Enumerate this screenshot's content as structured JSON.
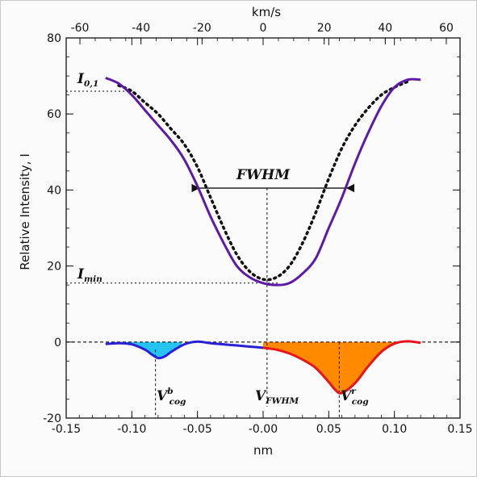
{
  "chart_data": {
    "type": "line",
    "xlabel": "nm",
    "ylabel": "Relative Intensity, I",
    "x2label": "km/s",
    "xlim": [
      -0.15,
      0.15
    ],
    "ylim": [
      -20,
      80
    ],
    "x2lim": [
      -64.5,
      64.5
    ],
    "xticks": [
      "-0.15",
      "-0.10",
      "-0.05",
      "-0.00",
      "0.05",
      "0.10",
      "0.15"
    ],
    "x2ticks": [
      "-60",
      "-40",
      "-20",
      "0",
      "20",
      "40",
      "60"
    ],
    "yticks": [
      "-20",
      "0",
      "20",
      "40",
      "60",
      "80"
    ],
    "series": [
      {
        "role": "observed-profile",
        "color": "#5b1aa8",
        "x": [
          -0.12,
          -0.11,
          -0.1,
          -0.09,
          -0.08,
          -0.07,
          -0.06,
          -0.05,
          -0.04,
          -0.03,
          -0.02,
          -0.01,
          0.0,
          0.01,
          0.02,
          0.03,
          0.04,
          0.05,
          0.06,
          0.07,
          0.08,
          0.09,
          0.1,
          0.11,
          0.12
        ],
        "y": [
          69.5,
          68,
          65,
          61,
          57,
          53,
          48,
          41,
          33,
          26,
          20,
          17,
          15.5,
          15,
          15.5,
          18,
          22,
          30,
          38,
          47,
          55,
          62,
          67,
          69,
          69
        ]
      },
      {
        "role": "mirrored-profile",
        "color": "#111111",
        "style": "dotted",
        "x": [
          -0.11,
          -0.1,
          -0.09,
          -0.08,
          -0.07,
          -0.06,
          -0.05,
          -0.04,
          -0.03,
          -0.02,
          -0.01,
          0.0,
          0.01,
          0.02,
          0.03,
          0.04,
          0.05,
          0.06,
          0.07,
          0.08,
          0.09,
          0.1,
          0.11
        ],
        "y": [
          67.5,
          66,
          63,
          60,
          56,
          52,
          46,
          38,
          30,
          23,
          18.5,
          16.5,
          17,
          20,
          26,
          34,
          43,
          51,
          57,
          61.5,
          65,
          67,
          68.5
        ]
      },
      {
        "role": "bisector-difference",
        "color_blue": "#2a1fd6",
        "color_red": "#e8141a",
        "x": [
          -0.12,
          -0.11,
          -0.1,
          -0.09,
          -0.085,
          -0.08,
          -0.075,
          -0.07,
          -0.06,
          -0.05,
          -0.04,
          -0.03,
          -0.02,
          -0.01,
          0.0,
          0.01,
          0.02,
          0.03,
          0.04,
          0.05,
          0.055,
          0.06,
          0.07,
          0.08,
          0.09,
          0.1,
          0.11,
          0.12
        ],
        "y": [
          -0.5,
          -0.3,
          -0.6,
          -2.0,
          -3.2,
          -4.2,
          -3.8,
          -2.6,
          -0.6,
          0.1,
          -0.3,
          -0.6,
          -0.9,
          -1.2,
          -1.5,
          -2.0,
          -3.0,
          -4.6,
          -6.8,
          -10.5,
          -12.6,
          -13.4,
          -10.8,
          -6.4,
          -2.6,
          -0.4,
          0.2,
          -0.2
        ]
      }
    ],
    "fills": [
      {
        "name": "blue-lobe",
        "color": "#27c4f2",
        "x_from": -0.115,
        "x_to": -0.062
      },
      {
        "name": "red-lobe",
        "color": "#ff8a00",
        "x_from": 0.0,
        "x_to": 0.105
      }
    ],
    "reference_lines": {
      "i01": 66,
      "imin": 15.5,
      "fwhm_y": 40.5,
      "fwhm_x": [
        -0.05,
        0.065
      ],
      "v_fwhm_x": 0.003,
      "vb_cog_x": -0.082,
      "vr_cog_x": 0.058
    },
    "annotations": {
      "i01": {
        "main": "I",
        "sub": "0,1"
      },
      "imin": {
        "main": "I",
        "sub": "min"
      },
      "fwhm": {
        "main": "FWHM"
      },
      "vb_cog": {
        "main": "V",
        "sup": "b",
        "sub": "cog"
      },
      "v_fwhm": {
        "main": "V",
        "sub": "FWHM"
      },
      "vr_cog": {
        "main": "V",
        "sup": "r",
        "sub": "cog"
      }
    },
    "grid": false,
    "legend": "none"
  }
}
